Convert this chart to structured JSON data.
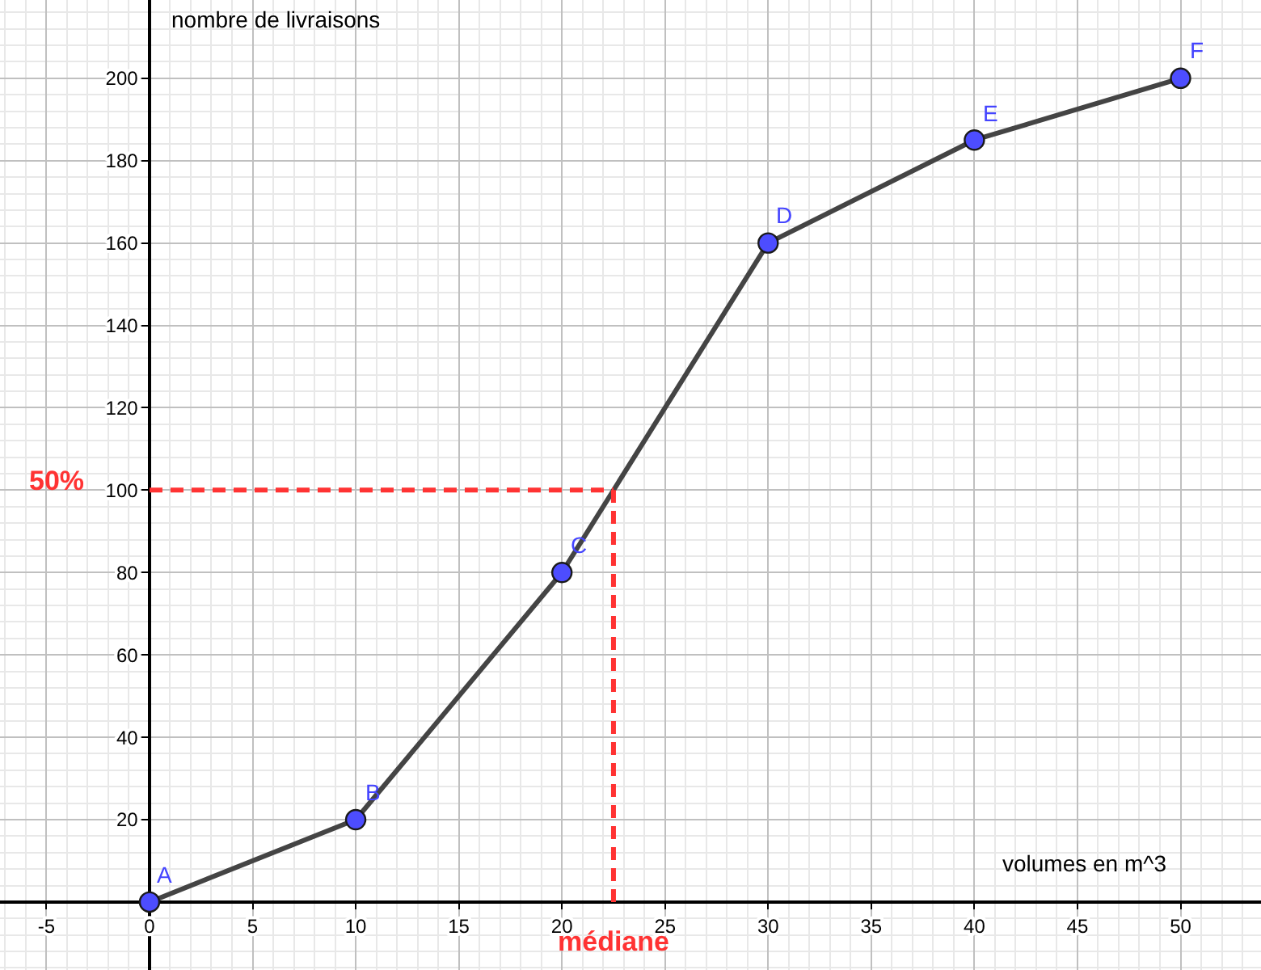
{
  "chart_data": {
    "type": "line",
    "xlabel": "volumes en m^3",
    "ylabel": "nombre de livraisons",
    "x": [
      0,
      10,
      20,
      30,
      40,
      50
    ],
    "series": [
      {
        "color": "#444444",
        "colors": [
          "#4d4dff",
          "#4d4dff",
          "#4d4dff",
          "#4d4dff",
          "#4d4dff",
          "#4d4dff"
        ],
        "values": [
          0,
          20,
          80,
          160,
          185,
          200
        ]
      }
    ],
    "xlim": [
      -7.25,
      53.9
    ],
    "ylim": [
      -16.5,
      219
    ],
    "xticks": [
      -5,
      0,
      5,
      10,
      15,
      20,
      25,
      30,
      35,
      40,
      45,
      50
    ],
    "yticks": [
      20,
      40,
      60,
      80,
      100,
      120,
      140,
      160,
      180,
      200
    ],
    "grid": true,
    "marker": "circle",
    "line_style": "solid",
    "ref_lines": [
      {
        "axis": "y",
        "value": 100,
        "color": "#ff3333",
        "line_style": "dashed"
      },
      {
        "axis": "x",
        "value": 22.5,
        "label": "médiane",
        "color": "#ff3333",
        "line_style": "dashed"
      }
    ],
    "annotations": [
      "50%",
      {
        "text": "A",
        "x": 0,
        "y": 0
      },
      {
        "text": "B",
        "x": 10,
        "y": 20
      },
      {
        "text": "C",
        "x": 20,
        "y": 80
      },
      {
        "text": "D",
        "x": 30,
        "y": 160
      },
      {
        "text": "E",
        "x": 40,
        "y": 185
      },
      {
        "text": "F",
        "x": 50,
        "y": 200
      }
    ]
  }
}
